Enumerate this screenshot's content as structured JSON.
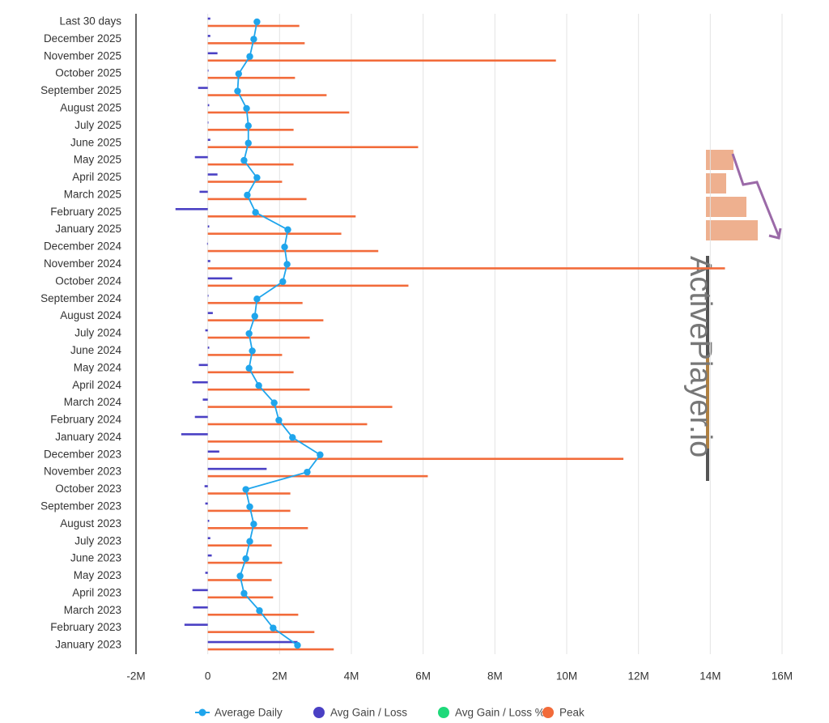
{
  "chart_data": {
    "type": "bar",
    "categories": [
      "Last 30 days",
      "December 2025",
      "November 2025",
      "October 2025",
      "September 2025",
      "August 2025",
      "July 2025",
      "June 2025",
      "May 2025",
      "April 2025",
      "March 2025",
      "February 2025",
      "January 2025",
      "December 2024",
      "November 2024",
      "October 2024",
      "September 2024",
      "August 2024",
      "July 2024",
      "June 2024",
      "May 2024",
      "April 2024",
      "March 2024",
      "February 2024",
      "January 2024",
      "December 2023",
      "November 2023",
      "October 2023",
      "September 2023",
      "August 2023",
      "July 2023",
      "June 2023",
      "May 2023",
      "April 2023",
      "March 2023",
      "February 2023",
      "January 2023"
    ],
    "series": [
      {
        "name": "Average Daily",
        "color": "#1fa5ec",
        "kind": "line",
        "values": [
          1370000,
          1280000,
          1170000,
          860000,
          830000,
          1080000,
          1130000,
          1130000,
          1010000,
          1370000,
          1100000,
          1330000,
          2230000,
          2140000,
          2210000,
          2090000,
          1370000,
          1310000,
          1150000,
          1240000,
          1150000,
          1420000,
          1850000,
          1980000,
          2360000,
          3130000,
          2770000,
          1060000,
          1170000,
          1280000,
          1170000,
          1060000,
          900000,
          1010000,
          1440000,
          1820000,
          2500000
        ]
      },
      {
        "name": "Avg Gain / Loss",
        "color": "#4a40c4",
        "kind": "bar",
        "values": [
          70000,
          70000,
          270000,
          20000,
          -270000,
          40000,
          10000,
          70000,
          -360000,
          270000,
          -230000,
          -900000,
          40000,
          -20000,
          70000,
          680000,
          20000,
          140000,
          -70000,
          40000,
          -250000,
          -430000,
          -140000,
          -360000,
          -740000,
          320000,
          1640000,
          -90000,
          -70000,
          40000,
          70000,
          110000,
          -70000,
          -430000,
          -410000,
          -650000,
          2500000
        ]
      },
      {
        "name": "Avg Gain / Loss %",
        "color": "#1ed97a",
        "kind": "bar",
        "values": [
          null,
          null,
          null,
          null,
          null,
          null,
          null,
          null,
          null,
          null,
          null,
          null,
          null,
          null,
          null,
          null,
          null,
          null,
          null,
          null,
          null,
          null,
          null,
          null,
          null,
          null,
          null,
          null,
          null,
          null,
          null,
          null,
          null,
          null,
          null,
          null,
          null
        ]
      },
      {
        "name": "Peak",
        "color": "#f26b3a",
        "kind": "bar",
        "values": [
          2550000,
          2700000,
          9700000,
          2430000,
          3310000,
          3940000,
          2390000,
          5860000,
          2390000,
          2070000,
          2750000,
          4120000,
          3720000,
          4750000,
          14410000,
          5590000,
          2640000,
          3220000,
          2840000,
          2070000,
          2390000,
          2840000,
          5140000,
          4440000,
          4860000,
          11580000,
          6130000,
          2300000,
          2300000,
          2790000,
          1780000,
          2070000,
          1780000,
          1820000,
          2520000,
          2970000,
          3510000
        ]
      }
    ],
    "xlim": [
      -2000000,
      16000000
    ],
    "xticks": [
      {
        "value": -2000000,
        "label": "-2M"
      },
      {
        "value": 0,
        "label": "0"
      },
      {
        "value": 2000000,
        "label": "2M"
      },
      {
        "value": 4000000,
        "label": "4M"
      },
      {
        "value": 6000000,
        "label": "6M"
      },
      {
        "value": 8000000,
        "label": "8M"
      },
      {
        "value": 10000000,
        "label": "10M"
      },
      {
        "value": 12000000,
        "label": "12M"
      },
      {
        "value": 14000000,
        "label": "14M"
      },
      {
        "value": 16000000,
        "label": "16M"
      }
    ],
    "grid": true,
    "legend": "bottom",
    "watermark": "ActivePlayer.io"
  }
}
